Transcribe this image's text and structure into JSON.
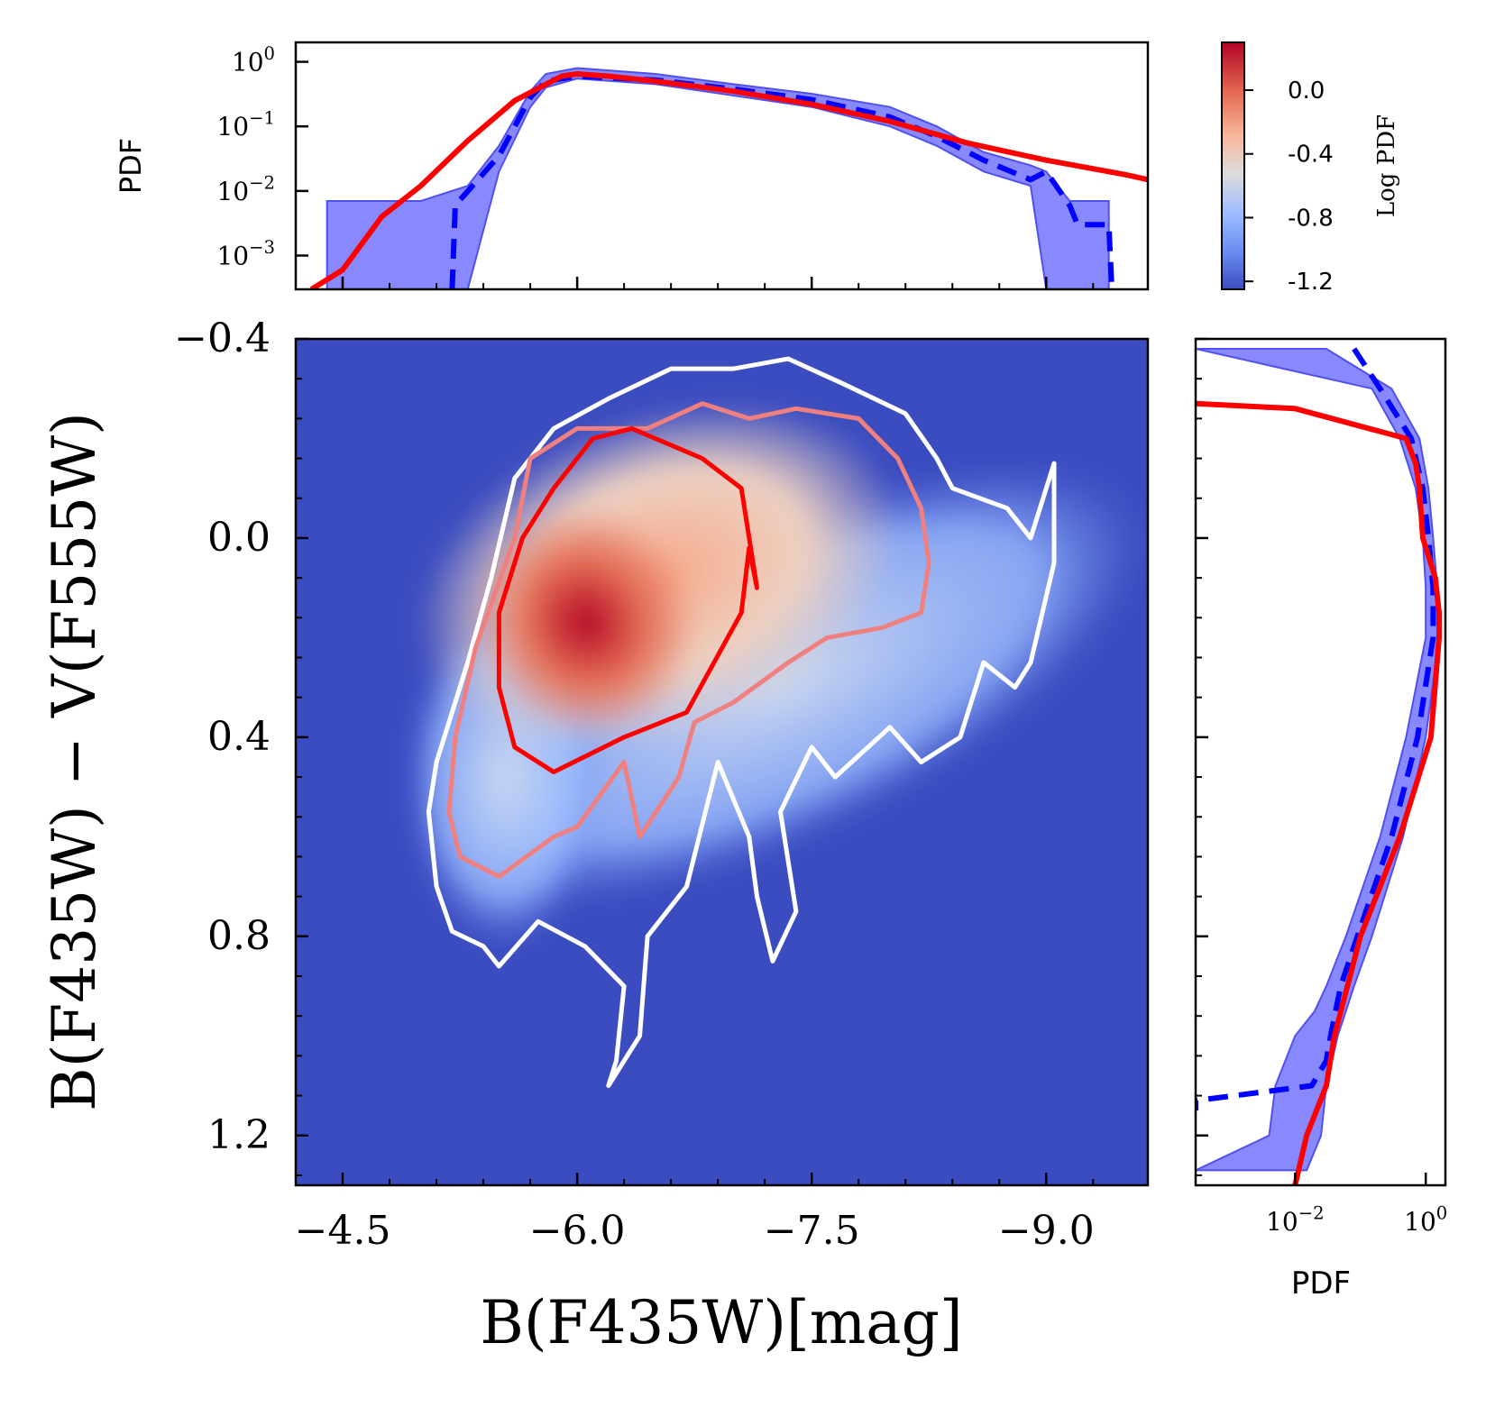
{
  "chart_data": [
    {
      "panel": "main",
      "type": "heatmap",
      "xlabel": "B(F435W)[mag]",
      "ylabel": "B(F435W) − V(F555W)",
      "xlim": [
        -4.2,
        -9.65
      ],
      "ylim": [
        1.3,
        -0.4
      ],
      "x_ticks": [
        -4.5,
        -6.0,
        -7.5,
        -9.0
      ],
      "x_tick_labels": [
        "−4.5",
        "−6.0",
        "−7.5",
        "−9.0"
      ],
      "y_ticks": [
        -0.4,
        0.0,
        0.4,
        0.8,
        1.2
      ],
      "y_tick_labels": [
        "−0.4",
        "0.0",
        "0.4",
        "0.8",
        "1.2"
      ],
      "density_peak": {
        "x": -6.05,
        "y": 0.2
      },
      "contours": [
        {
          "level": "outer",
          "color": "#ffffff",
          "points": [
            [
              -5.5,
              0.86
            ],
            [
              -5.4,
              0.82
            ],
            [
              -5.2,
              0.79
            ],
            [
              -5.1,
              0.7
            ],
            [
              -5.05,
              0.55
            ],
            [
              -5.1,
              0.45
            ],
            [
              -5.3,
              0.25
            ],
            [
              -5.45,
              0.08
            ],
            [
              -5.6,
              -0.12
            ],
            [
              -5.85,
              -0.22
            ],
            [
              -6.2,
              -0.28
            ],
            [
              -6.6,
              -0.34
            ],
            [
              -7.0,
              -0.34
            ],
            [
              -7.35,
              -0.36
            ],
            [
              -7.7,
              -0.31
            ],
            [
              -8.1,
              -0.25
            ],
            [
              -8.3,
              -0.16
            ],
            [
              -8.4,
              -0.1
            ],
            [
              -8.75,
              -0.06
            ],
            [
              -8.9,
              0.0
            ],
            [
              -9.05,
              -0.15
            ],
            [
              -9.05,
              0.05
            ],
            [
              -8.9,
              0.25
            ],
            [
              -8.8,
              0.3
            ],
            [
              -8.6,
              0.25
            ],
            [
              -8.45,
              0.4
            ],
            [
              -8.2,
              0.45
            ],
            [
              -8.0,
              0.38
            ],
            [
              -7.65,
              0.48
            ],
            [
              -7.5,
              0.42
            ],
            [
              -7.3,
              0.55
            ],
            [
              -7.4,
              0.75
            ],
            [
              -7.25,
              0.85
            ],
            [
              -7.15,
              0.72
            ],
            [
              -7.1,
              0.6
            ],
            [
              -6.9,
              0.45
            ],
            [
              -6.7,
              0.7
            ],
            [
              -6.45,
              0.8
            ],
            [
              -6.4,
              1.0
            ],
            [
              -6.2,
              1.1
            ],
            [
              -6.25,
              1.05
            ],
            [
              -6.3,
              0.9
            ],
            [
              -6.05,
              0.82
            ],
            [
              -5.75,
              0.77
            ],
            [
              -5.5,
              0.86
            ]
          ]
        },
        {
          "level": "middle",
          "color": "#f08080",
          "points": [
            [
              -5.25,
              0.64
            ],
            [
              -5.18,
              0.55
            ],
            [
              -5.22,
              0.4
            ],
            [
              -5.35,
              0.22
            ],
            [
              -5.6,
              0.0
            ],
            [
              -5.7,
              -0.16
            ],
            [
              -6.0,
              -0.22
            ],
            [
              -6.45,
              -0.22
            ],
            [
              -6.8,
              -0.27
            ],
            [
              -7.1,
              -0.24
            ],
            [
              -7.4,
              -0.26
            ],
            [
              -7.8,
              -0.24
            ],
            [
              -8.05,
              -0.16
            ],
            [
              -8.2,
              -0.06
            ],
            [
              -8.25,
              0.05
            ],
            [
              -8.2,
              0.15
            ],
            [
              -7.95,
              0.18
            ],
            [
              -7.6,
              0.2
            ],
            [
              -7.35,
              0.25
            ],
            [
              -7.0,
              0.33
            ],
            [
              -6.75,
              0.37
            ],
            [
              -6.65,
              0.48
            ],
            [
              -6.4,
              0.6
            ],
            [
              -6.3,
              0.45
            ],
            [
              -6.0,
              0.58
            ],
            [
              -5.85,
              0.6
            ],
            [
              -5.5,
              0.68
            ],
            [
              -5.25,
              0.64
            ]
          ]
        },
        {
          "level": "inner",
          "color": "#ff0000",
          "points": [
            [
              -5.6,
              0.42
            ],
            [
              -5.5,
              0.3
            ],
            [
              -5.5,
              0.15
            ],
            [
              -5.65,
              0.0
            ],
            [
              -5.85,
              -0.1
            ],
            [
              -6.1,
              -0.2
            ],
            [
              -6.35,
              -0.22
            ],
            [
              -6.5,
              -0.2
            ],
            [
              -6.8,
              -0.16
            ],
            [
              -7.05,
              -0.1
            ],
            [
              -7.15,
              0.1
            ],
            [
              -7.1,
              0.02
            ],
            [
              -7.05,
              0.15
            ],
            [
              -6.7,
              0.35
            ],
            [
              -6.3,
              0.4
            ],
            [
              -5.85,
              0.47
            ],
            [
              -5.6,
              0.42
            ]
          ]
        }
      ]
    },
    {
      "panel": "top_marginal",
      "type": "line",
      "ylabel": "PDF",
      "yscale": "log",
      "xlim": [
        -4.2,
        -9.65
      ],
      "ylim": [
        0.0003,
        2.0
      ],
      "y_ticks": [
        1,
        0.1,
        0.01,
        0.001
      ],
      "y_tick_labels": [
        "10^0",
        "10^−1",
        "10^−2",
        "10^−3"
      ],
      "series": [
        {
          "style": "band",
          "color": "#7373ff",
          "x": [
            -4.4,
            -5.0,
            -5.3,
            -5.5,
            -5.7,
            -5.8,
            -6.0,
            -6.5,
            -7.0,
            -7.5,
            -8.0,
            -8.3,
            -8.6,
            -8.9,
            -9.0,
            -9.15,
            -9.2,
            -9.4
          ],
          "lower": [
            0.0003,
            0.0003,
            0.0003,
            0.02,
            0.2,
            0.4,
            0.55,
            0.45,
            0.3,
            0.2,
            0.1,
            0.05,
            0.02,
            0.012,
            0.0003,
            0.0003,
            0.0003,
            0.0003
          ],
          "upper": [
            0.007,
            0.007,
            0.012,
            0.05,
            0.35,
            0.65,
            0.8,
            0.65,
            0.45,
            0.32,
            0.2,
            0.1,
            0.04,
            0.025,
            0.02,
            0.007,
            0.007,
            0.007
          ]
        },
        {
          "style": "dashed",
          "color": "#0000ff",
          "x": [
            -5.2,
            -5.22,
            -5.5,
            -5.7,
            -5.8,
            -6.0,
            -6.5,
            -7.0,
            -7.5,
            -8.0,
            -8.3,
            -8.6,
            -8.9,
            -9.0,
            -9.15,
            -9.2,
            -9.4,
            -9.42
          ],
          "y": [
            0.0003,
            0.006,
            0.035,
            0.28,
            0.5,
            0.6,
            0.52,
            0.38,
            0.26,
            0.14,
            0.07,
            0.03,
            0.015,
            0.02,
            0.006,
            0.003,
            0.003,
            0.0003
          ]
        },
        {
          "style": "solid",
          "color": "#ff0000",
          "x": [
            -4.3,
            -4.5,
            -4.75,
            -5.0,
            -5.3,
            -5.6,
            -5.9,
            -6.0,
            -6.2,
            -6.5,
            -7.0,
            -7.5,
            -8.0,
            -8.5,
            -9.0,
            -9.5,
            -9.65
          ],
          "y": [
            0.0003,
            0.0006,
            0.004,
            0.012,
            0.06,
            0.25,
            0.6,
            0.65,
            0.6,
            0.5,
            0.35,
            0.22,
            0.12,
            0.055,
            0.03,
            0.018,
            0.015
          ]
        }
      ]
    },
    {
      "panel": "right_marginal",
      "type": "line",
      "xlabel": "PDF",
      "xscale": "log",
      "xlim": [
        0.0003,
        2.0
      ],
      "ylim": [
        1.3,
        -0.4
      ],
      "x_ticks": [
        0.01,
        1
      ],
      "x_tick_labels": [
        "10^−2",
        "10^0"
      ],
      "series": [
        {
          "style": "band",
          "color": "#7373ff",
          "y": [
            -0.38,
            -0.3,
            -0.2,
            -0.1,
            0.0,
            0.1,
            0.2,
            0.4,
            0.6,
            0.8,
            0.9,
            0.95,
            1.0,
            1.1,
            1.2,
            1.27
          ],
          "lower": [
            0.0003,
            0.15,
            0.4,
            0.7,
            0.9,
            1.0,
            1.0,
            0.5,
            0.2,
            0.06,
            0.03,
            0.02,
            0.01,
            0.005,
            0.004,
            0.0003
          ],
          "upper": [
            0.03,
            0.3,
            0.8,
            1.1,
            1.3,
            1.5,
            1.6,
            1.0,
            0.45,
            0.15,
            0.08,
            0.06,
            0.045,
            0.03,
            0.025,
            0.015
          ]
        },
        {
          "style": "dashed",
          "color": "#0000ff",
          "y": [
            -0.38,
            -0.3,
            -0.2,
            -0.1,
            0.0,
            0.1,
            0.2,
            0.4,
            0.6,
            0.8,
            0.9,
            1.0,
            1.05,
            1.1,
            1.13,
            1.15
          ],
          "x": [
            0.08,
            0.2,
            0.6,
            0.9,
            1.1,
            1.3,
            1.3,
            0.75,
            0.3,
            0.09,
            0.05,
            0.035,
            0.03,
            0.018,
            0.0003,
            0.0003
          ]
        },
        {
          "style": "solid",
          "color": "#ff0000",
          "y": [
            -0.27,
            -0.26,
            -0.2,
            -0.15,
            -0.1,
            0.0,
            0.08,
            0.15,
            0.2,
            0.4,
            0.6,
            0.8,
            1.0,
            1.1,
            1.2,
            1.3
          ],
          "x": [
            0.0003,
            0.01,
            0.5,
            0.7,
            0.8,
            0.9,
            1.4,
            1.6,
            1.6,
            1.2,
            0.4,
            0.1,
            0.04,
            0.03,
            0.015,
            0.01
          ]
        }
      ]
    },
    {
      "panel": "colorbar",
      "type": "colorbar",
      "label": "Log PDF",
      "range": [
        -1.25,
        0.3
      ],
      "ticks": [
        0.0,
        -0.4,
        -0.8,
        -1.2
      ],
      "tick_labels": [
        "0.0",
        "-0.4",
        "-0.8",
        "-1.2"
      ],
      "colormap": "coolwarm",
      "colors": [
        "#3b4cc0",
        "#6788ee",
        "#9abbff",
        "#c9d7f0",
        "#edd1c2",
        "#f7a889",
        "#e26952",
        "#b40426"
      ]
    }
  ]
}
